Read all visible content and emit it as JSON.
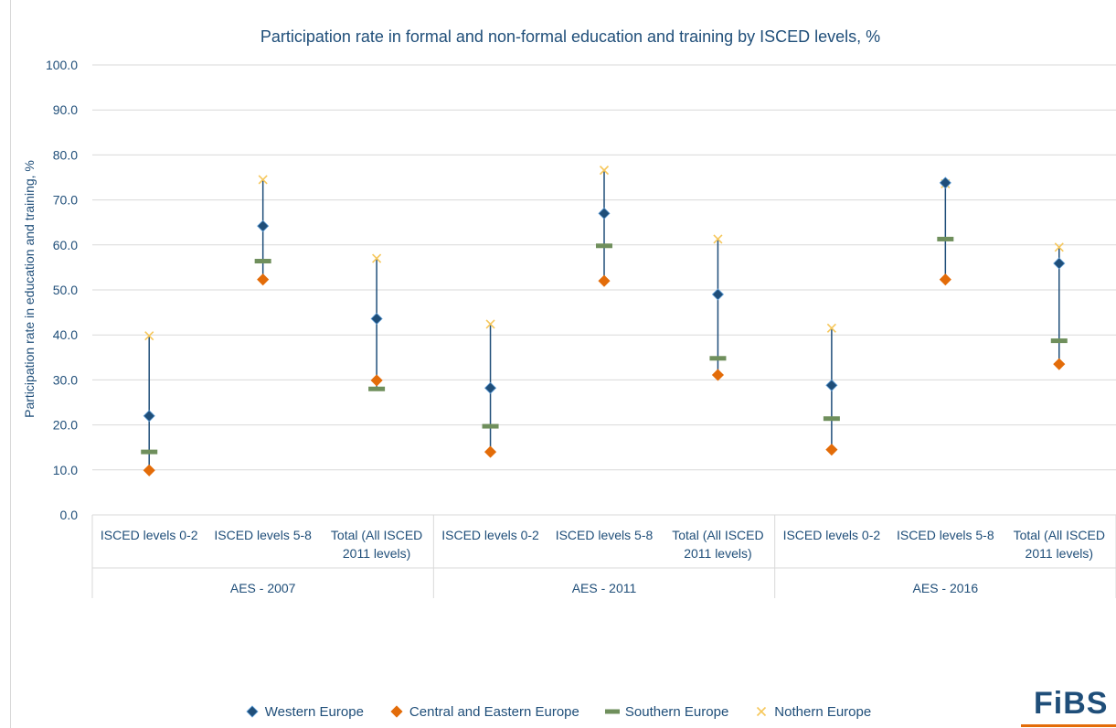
{
  "chart_data": {
    "type": "scatter",
    "title": "Participation rate in formal and non-formal education and training by ISCED levels, %",
    "ylabel": "Participation rate in education and training, %",
    "ylim": [
      0,
      100
    ],
    "y_ticks": [
      "0.0",
      "10.0",
      "20.0",
      "30.0",
      "40.0",
      "50.0",
      "60.0",
      "70.0",
      "80.0",
      "90.0",
      "100.0"
    ],
    "grid": true,
    "legend_position": "bottom",
    "categories": [
      [
        "ISCED levels 0-2"
      ],
      [
        "ISCED levels 5-8"
      ],
      [
        "Total (All ISCED",
        "2011 levels)"
      ],
      [
        "ISCED levels 0-2"
      ],
      [
        "ISCED levels 5-8"
      ],
      [
        "Total (All ISCED",
        "2011 levels)"
      ],
      [
        "ISCED levels 0-2"
      ],
      [
        "ISCED levels 5-8"
      ],
      [
        "Total (All ISCED",
        "2011 levels)"
      ]
    ],
    "groups": [
      "AES - 2007",
      "AES - 2011",
      "AES - 2016"
    ],
    "series": [
      {
        "name": "Western Europe",
        "marker": "diamond",
        "color": "#1f4e79",
        "values": [
          22.0,
          64.2,
          43.6,
          28.2,
          67.0,
          49.0,
          28.8,
          73.8,
          55.9
        ]
      },
      {
        "name": "Central and Eastern Europe",
        "marker": "diamond",
        "color": "#e36c09",
        "values": [
          9.9,
          52.3,
          29.9,
          14.0,
          52.0,
          31.1,
          14.5,
          52.3,
          33.5
        ]
      },
      {
        "name": "Southern Europe",
        "marker": "dash",
        "color": "#6f8f5c",
        "values": [
          14.0,
          56.4,
          28.0,
          19.7,
          59.8,
          34.8,
          21.4,
          61.3,
          38.7
        ]
      },
      {
        "name": "Nothern Europe",
        "marker": "x",
        "color": "#f6c75b",
        "values": [
          39.8,
          74.5,
          57.0,
          42.4,
          76.6,
          61.3,
          41.5,
          73.6,
          59.5
        ]
      }
    ]
  },
  "legend": {
    "items": [
      {
        "label": "Western Europe",
        "color": "#1f4e79",
        "marker": "diamond"
      },
      {
        "label": "Central and Eastern Europe",
        "color": "#e36c09",
        "marker": "diamond"
      },
      {
        "label": "Southern Europe",
        "color": "#6f8f5c",
        "marker": "dash"
      },
      {
        "label": "Nothern Europe",
        "color": "#f6c75b",
        "marker": "x"
      }
    ]
  },
  "logo": {
    "text": "FiBS"
  }
}
